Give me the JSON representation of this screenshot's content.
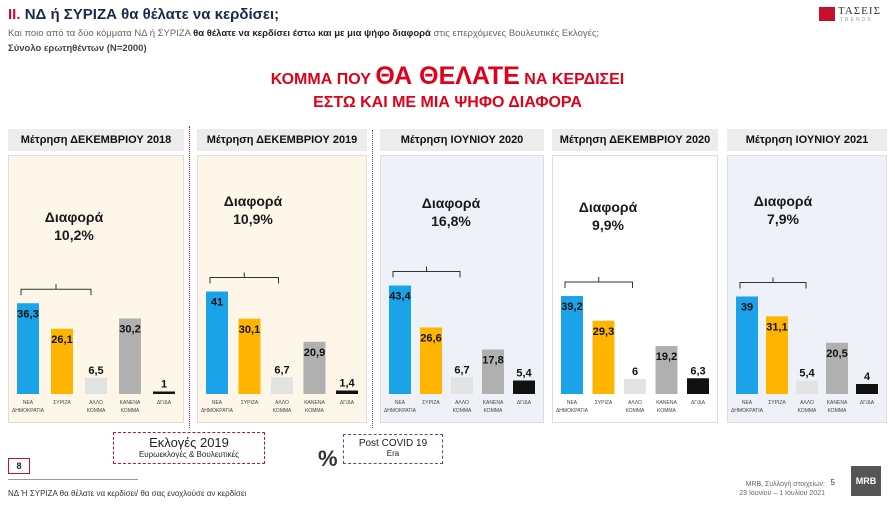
{
  "header": {
    "title_roman": "II.",
    "title_rest": "ΝΔ  ή ΣΥΡΙΖΑ θα θέλατε να κερδίσει;",
    "subtitle_pre": "Και ποιο από τα δύο κόμματα ΝΔ ή ΣΥΡΙΖΑ ",
    "subtitle_bold": "θα θέλατε να κερδίσει έστω και με μια ψήφο διαφορά",
    "subtitle_post": " στις επερχόμενες Βουλευτικές Εκλογές;",
    "base": "Σύνολο ερωτηθέντων (N=2000)",
    "logo_text": "ΤΑΣΕΙΣ",
    "logo_sub": "TRENDS"
  },
  "headline": {
    "line1_a": "ΚΟΜΜΑ ΠΟΥ ",
    "line1_big": "ΘΑ ΘΕΛΑΤΕ",
    "line1_b": " ΝΑ ΚΕΡΔΙΣΕΙ",
    "line2": "ΕΣΤΩ ΚΑΙ ΜΕ ΜΙΑ ΨΗΦΟ ΔΙΑΦΟΡΑ"
  },
  "colors": {
    "nd": "#1aa3e8",
    "syriza": "#ffb400",
    "other": "#e3e3e3",
    "none": "#b0b0b0",
    "dk": "#111111"
  },
  "chart_data": [
    {
      "type": "bar",
      "title": "Μέτρηση ΔΕΚΕΜΒΡΙΟΥ 2018",
      "diff_label": "Διαφορά",
      "diff": "10,2%",
      "categories": [
        "ΝΕΑ ΔΗΜΟΚΡΑΤΙΑ",
        "ΣΥΡΙΖΑ",
        "ΑΛΛΟ ΚΟΜΜΑ",
        "ΚΑΝΕΝΑ ΚΟΜΜΑ",
        "ΔΓ/ΔΑ"
      ],
      "values": [
        36.3,
        26.1,
        6.5,
        30.2,
        1
      ],
      "labels": [
        "36,3",
        "26,1",
        "6,5",
        "30,2",
        "1"
      ]
    },
    {
      "type": "bar",
      "title": "Μέτρηση ΔΕΚΕΜΒΡΙΟΥ 2019",
      "diff_label": "Διαφορά",
      "diff": "10,9%",
      "categories": [
        "ΝΕΑ ΔΗΜΟΚΡΑΤΙΑ",
        "ΣΥΡΙΖΑ",
        "ΑΛΛΟ ΚΟΜΜΑ",
        "ΚΑΝΕΝΑ ΚΟΜΜΑ",
        "ΔΓ/ΔΑ"
      ],
      "values": [
        41,
        30.1,
        6.7,
        20.9,
        1.4
      ],
      "labels": [
        "41",
        "30,1",
        "6,7",
        "20,9",
        "1,4"
      ]
    },
    {
      "type": "bar",
      "title": "Μέτρηση ΙΟΥΝΙΟΥ 2020",
      "diff_label": "Διαφορά",
      "diff": "16,8%",
      "categories": [
        "ΝΕΑ ΔΗΜΟΚΡΑΤΙΑ",
        "ΣΥΡΙΖΑ",
        "ΑΛΛΟ ΚΟΜΜΑ",
        "ΚΑΝΕΝΑ ΚΟΜΜΑ",
        "ΔΓ/ΔΑ"
      ],
      "values": [
        43.4,
        26.6,
        6.7,
        17.8,
        5.4
      ],
      "labels": [
        "43,4",
        "26,6",
        "6,7",
        "17,8",
        "5,4"
      ]
    },
    {
      "type": "bar",
      "title": "Μέτρηση ΔΕΚΕΜΒΡΙΟΥ 2020",
      "diff_label": "Διαφορά",
      "diff": "9,9%",
      "categories": [
        "ΝΕΑ ΔΗΜΟΚΡΑΤΙΑ",
        "ΣΥΡΙΖΑ",
        "ΑΛΛΟ ΚΟΜΜΑ",
        "ΚΑΝΕΝΑ ΚΟΜΜΑ",
        "ΔΓ/ΔΑ"
      ],
      "values": [
        39.2,
        29.3,
        6,
        19.2,
        6.3
      ],
      "labels": [
        "39,2",
        "29,3",
        "6",
        "19,2",
        "6,3"
      ]
    },
    {
      "type": "bar",
      "title": "Μέτρηση ΙΟΥΝΙΟΥ 2021",
      "diff_label": "Διαφορά",
      "diff": "7,9%",
      "categories": [
        "ΝΕΑ ΔΗΜΟΚΡΑΤΙΑ",
        "ΣΥΡΙΖΑ",
        "ΑΛΛΟ ΚΟΜΜΑ",
        "ΚΑΝΕΝΑ ΚΟΜΜΑ",
        "ΔΓ/ΔΑ"
      ],
      "values": [
        39,
        31.1,
        5.4,
        20.5,
        4
      ],
      "labels": [
        "39",
        "31,1",
        "5,4",
        "20,5",
        "4"
      ]
    }
  ],
  "notes": {
    "elections_title": "Εκλογές 2019",
    "elections_sub": "Ευρωεκλογές & Βουλευτικές",
    "covid_title": "Post  COVID 19",
    "covid_sub": "Era",
    "percent_sign": "%"
  },
  "footer": {
    "page_box": "8",
    "footnote": "ΝΔ Ή ΣΥΡΙΖΑ θα θέλατε να κερδίσει/ θα σας ενοχλούσε αν κερδίσει",
    "source_line1": "MRB, Συλλογή στοιχείων:",
    "source_line2": "23 Ιουνίου –  1 Ιουλίου 2021",
    "slide_num": "5",
    "mrb_logo": "MRB"
  }
}
